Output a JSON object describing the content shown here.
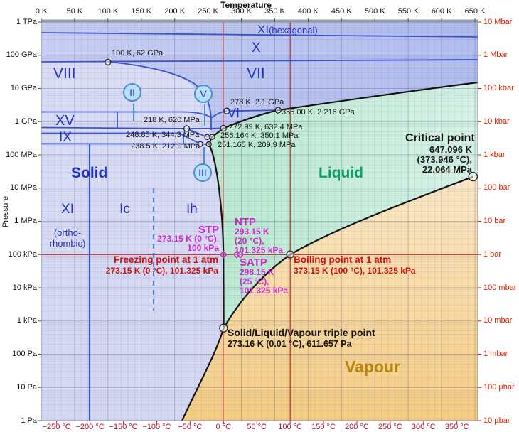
{
  "figure": {
    "x_axis_title": "Temperature",
    "y_axis_title": "Pressure"
  },
  "axes": {
    "top_kelvin": [
      "0 K",
      "50 K",
      "100 K",
      "150 K",
      "200 K",
      "250 K",
      "300 K",
      "350 K",
      "400 K",
      "450 K",
      "500 K",
      "550 K",
      "600 K",
      "650 K"
    ],
    "bottom_celsius": [
      "−250 °C",
      "−200 °C",
      "−150 °C",
      "−100 °C",
      "−50 °C",
      "0 °C",
      "50 °C",
      "100 °C",
      "150 °C",
      "200 °C",
      "250 °C",
      "300 °C",
      "350 °C"
    ],
    "left_pressure": [
      "1 TPa",
      "100 GPa",
      "10 GPa",
      "1 GPa",
      "100 MPa",
      "10 MPa",
      "1 MPa",
      "100 kPa",
      "10 kPa",
      "1 kPa",
      "100 Pa",
      "10 Pa",
      "1 Pa"
    ],
    "right_pressure": [
      "10 Mbar",
      "1 Mbar",
      "100 kbar",
      "10 kbar",
      "1 kbar",
      "100 bar",
      "10 bar",
      "1 bar",
      "100 mbar",
      "10 mbar",
      "1 mbar",
      "100 µbar",
      "10 µbar"
    ]
  },
  "regions": {
    "solid": "Solid",
    "liquid": "Liquid",
    "vapour": "Vapour",
    "viii": "VIII",
    "vii": "VII",
    "x": "X",
    "xi_hex": "XI",
    "xi_hex_sub": "(hexagonal)",
    "xv": "XV",
    "ix": "IX",
    "vi": "VI",
    "xi_ortho": "XI",
    "xi_ortho_sub1": "(ortho-",
    "xi_ortho_sub2": "rhombic)",
    "ic": "Ic",
    "ih": "Ih",
    "ii": "II",
    "v": "V",
    "iii": "III"
  },
  "annotations": {
    "critical": {
      "title": "Critical point",
      "l1": "647.096 K",
      "l2": "(373.946 °C),",
      "l3": "22.064 MPa"
    },
    "triple": {
      "title": "Solid/Liquid/Vapour triple point",
      "l1": "273.16 K (0.01 °C), 611.657 Pa"
    },
    "freezing": {
      "title": "Freezing point at 1 atm",
      "l1": "273.15 K (0 °C), 101.325 kPa"
    },
    "boiling": {
      "title": "Boiling point at 1 atm",
      "l1": "373.15 K (100 °C), 101.325 kPa"
    },
    "stp": {
      "title": "STP",
      "l1": "273.15 K (0 °C),",
      "l2": "100 kPa"
    },
    "ntp": {
      "title": "NTP",
      "l1": "293.15 K",
      "l2": "(20 °C),",
      "l3": "101.325 kPa"
    },
    "satp": {
      "title": "SATP",
      "l1": "298.15 K",
      "l2": "(25 °C),",
      "l3": "101.325 kPa"
    }
  },
  "chart_data": {
    "type": "line",
    "title": "Pressure–temperature phase diagram of water",
    "xlabel": "Temperature",
    "ylabel": "Pressure",
    "x_scale": "linear",
    "y_scale": "log",
    "x_range_K": [
      0,
      650
    ],
    "y_range_Pa": [
      1,
      1000000000000
    ],
    "grid": true,
    "legend": false,
    "points": [
      {
        "label": "100 K, 62 GPa",
        "K": 100,
        "Pa": 62000000000,
        "r": 4
      },
      {
        "label": "278 K, 2.1 GPa",
        "K": 278,
        "Pa": 2100000000,
        "r": 4
      },
      {
        "label": "355.00 K, 2.216 GPa",
        "K": 355,
        "Pa": 2216000000,
        "r": 4
      },
      {
        "label": "218 K, 620 MPa",
        "K": 218,
        "Pa": 620000000,
        "r": 4
      },
      {
        "label": "272.99 K, 632.4 MPa",
        "K": 272.99,
        "Pa": 632400000,
        "r": 4
      },
      {
        "label": "256.164 K, 350.1 MPa",
        "K": 256.164,
        "Pa": 350100000,
        "r": 3.5
      },
      {
        "label": "248.85 K, 344.3 MPa",
        "K": 248.85,
        "Pa": 344300000,
        "r": 3.5
      },
      {
        "label": "251.165 K, 209.9 MPa",
        "K": 251.165,
        "Pa": 209900000,
        "r": 3.5
      },
      {
        "label": "238.5 K, 212.9 MPa",
        "K": 238.5,
        "Pa": 212900000,
        "r": 3.5
      },
      {
        "label": "Triple point",
        "K": 273.16,
        "Pa": 611.657,
        "r": 5.5
      },
      {
        "label": "Boiling point",
        "K": 373.15,
        "Pa": 101325,
        "r": 5
      },
      {
        "label": "Critical point",
        "K": 647.096,
        "Pa": 22064000,
        "r": 6
      }
    ],
    "std_states": [
      {
        "name": "STP",
        "K": 273.15,
        "Pa": 100000
      },
      {
        "name": "NTP",
        "K": 293.15,
        "Pa": 101325
      },
      {
        "name": "SATP",
        "K": 298.15,
        "Pa": 101325
      }
    ],
    "reference_lines": {
      "vertical_celsius": [
        0,
        100
      ],
      "horizontal_Pa": 100000
    },
    "boundaries": [
      {
        "name": "sublimation Solid–Vapour",
        "points_K_Pa": [
          [
            211,
            1
          ],
          [
            273.16,
            611.657
          ]
        ]
      },
      {
        "name": "vaporization Liquid–Vapour",
        "points_K_Pa": [
          [
            273.16,
            611.657
          ],
          [
            373.15,
            101325
          ],
          [
            647.096,
            22064000
          ]
        ]
      },
      {
        "name": "melting Ih Solid–Liquid",
        "points_K_Pa": [
          [
            273.16,
            611.657
          ],
          [
            273.15,
            101325
          ],
          [
            251.165,
            209900000
          ]
        ]
      },
      {
        "name": "melting III",
        "points_K_Pa": [
          [
            251.165,
            209900000
          ],
          [
            256.164,
            350100000
          ]
        ]
      },
      {
        "name": "melting V",
        "points_K_Pa": [
          [
            256.164,
            350100000
          ],
          [
            272.99,
            632400000
          ]
        ]
      },
      {
        "name": "melting VI",
        "points_K_Pa": [
          [
            272.99,
            632400000
          ],
          [
            355,
            2216000000
          ]
        ]
      },
      {
        "name": "melting VII",
        "points_K_Pa": [
          [
            355,
            2216000000
          ],
          [
            654,
            15000000000
          ]
        ]
      },
      {
        "name": "VII–VIII",
        "points_K_Pa": [
          [
            100,
            62000000000
          ],
          [
            278,
            2100000000
          ]
        ]
      },
      {
        "name": "VI–VII",
        "points_K_Pa": [
          [
            278,
            2100000000
          ],
          [
            355,
            2216000000
          ]
        ]
      },
      {
        "name": "Ih–XI(ortho-rhombic)",
        "K": 72
      },
      {
        "name": "Ih–Ic (dashed, metastable)",
        "K": 168
      }
    ]
  },
  "colors": {
    "solid_fill": "#d9dbf4",
    "high_pressure_ice_fill": "#bcc5ef",
    "liquid_fill": "#c8eedb",
    "vapour_fill": "#f8d9a2",
    "phase_line_blue": "#3a56cc",
    "reference_line_red": "#b33030",
    "curve_black": "#141414",
    "label_blue": "#2135c4",
    "liquid_label_green": "#0ca06a",
    "vapour_label_gold": "#b8860b",
    "magenta_text": "#cc29cc",
    "red_text": "#cc1111"
  }
}
